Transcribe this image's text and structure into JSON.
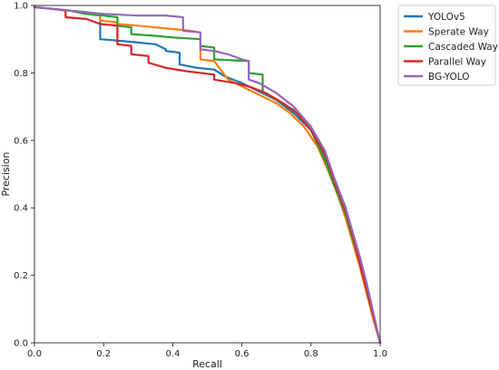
{
  "chart_data": {
    "type": "line",
    "title": "",
    "xlabel": "Recall",
    "ylabel": "Precision",
    "xlim": [
      0.0,
      1.0
    ],
    "ylim": [
      0.0,
      1.0
    ],
    "xticks": [
      "0.0",
      "0.2",
      "0.4",
      "0.6",
      "0.8",
      "1.0"
    ],
    "yticks": [
      "0.0",
      "0.2",
      "0.4",
      "0.6",
      "0.8",
      "1.0"
    ],
    "grid": false,
    "legend_position": "outside-right-top",
    "series": [
      {
        "name": "YOLOv5",
        "color": "#1f77b4",
        "x": [
          0.0,
          0.05,
          0.1,
          0.15,
          0.19,
          0.19,
          0.25,
          0.3,
          0.35,
          0.38,
          0.38,
          0.42,
          0.42,
          0.47,
          0.52,
          0.55,
          0.6,
          0.65,
          0.7,
          0.75,
          0.8,
          0.84,
          0.87,
          0.9,
          0.92,
          0.94,
          0.96,
          0.98,
          1.0
        ],
        "y": [
          0.995,
          0.99,
          0.985,
          0.975,
          0.97,
          0.9,
          0.895,
          0.89,
          0.885,
          0.87,
          0.865,
          0.86,
          0.825,
          0.815,
          0.81,
          0.79,
          0.77,
          0.745,
          0.72,
          0.68,
          0.63,
          0.55,
          0.48,
          0.4,
          0.32,
          0.25,
          0.17,
          0.08,
          0.0
        ]
      },
      {
        "name": "Sperate Way",
        "color": "#ff7f0e",
        "x": [
          0.0,
          0.05,
          0.1,
          0.15,
          0.19,
          0.19,
          0.24,
          0.24,
          0.3,
          0.35,
          0.4,
          0.45,
          0.48,
          0.48,
          0.52,
          0.56,
          0.6,
          0.65,
          0.7,
          0.74,
          0.78,
          0.82,
          0.85,
          0.88,
          0.9,
          0.92,
          0.94,
          0.96,
          0.98,
          1.0
        ],
        "y": [
          0.995,
          0.99,
          0.985,
          0.975,
          0.97,
          0.955,
          0.95,
          0.945,
          0.94,
          0.935,
          0.93,
          0.925,
          0.92,
          0.84,
          0.835,
          0.78,
          0.76,
          0.735,
          0.71,
          0.68,
          0.64,
          0.58,
          0.51,
          0.43,
          0.37,
          0.3,
          0.23,
          0.15,
          0.07,
          0.0
        ]
      },
      {
        "name": "Cascaded Way",
        "color": "#2ca02c",
        "x": [
          0.0,
          0.05,
          0.1,
          0.15,
          0.2,
          0.24,
          0.24,
          0.28,
          0.28,
          0.35,
          0.4,
          0.48,
          0.48,
          0.52,
          0.52,
          0.62,
          0.62,
          0.66,
          0.66,
          0.7,
          0.75,
          0.8,
          0.84,
          0.87,
          0.9,
          0.92,
          0.94,
          0.96,
          0.98,
          1.0
        ],
        "y": [
          0.995,
          0.99,
          0.985,
          0.975,
          0.97,
          0.965,
          0.94,
          0.935,
          0.915,
          0.91,
          0.905,
          0.9,
          0.88,
          0.875,
          0.84,
          0.835,
          0.8,
          0.795,
          0.745,
          0.72,
          0.69,
          0.63,
          0.54,
          0.46,
          0.38,
          0.31,
          0.24,
          0.16,
          0.08,
          0.0
        ]
      },
      {
        "name": "Parallel Way",
        "color": "#d62728",
        "x": [
          0.0,
          0.05,
          0.09,
          0.09,
          0.15,
          0.19,
          0.24,
          0.24,
          0.28,
          0.28,
          0.33,
          0.33,
          0.38,
          0.44,
          0.52,
          0.52,
          0.58,
          0.62,
          0.67,
          0.72,
          0.76,
          0.8,
          0.84,
          0.87,
          0.9,
          0.92,
          0.94,
          0.96,
          0.98,
          1.0
        ],
        "y": [
          0.995,
          0.99,
          0.985,
          0.965,
          0.96,
          0.945,
          0.94,
          0.885,
          0.88,
          0.855,
          0.85,
          0.83,
          0.815,
          0.805,
          0.795,
          0.78,
          0.77,
          0.76,
          0.74,
          0.71,
          0.68,
          0.63,
          0.56,
          0.47,
          0.39,
          0.32,
          0.24,
          0.16,
          0.08,
          0.0
        ]
      },
      {
        "name": "BG-YOLO",
        "color": "#9467bd",
        "x": [
          0.0,
          0.05,
          0.1,
          0.15,
          0.2,
          0.3,
          0.38,
          0.43,
          0.43,
          0.48,
          0.48,
          0.52,
          0.56,
          0.6,
          0.62,
          0.62,
          0.65,
          0.7,
          0.75,
          0.8,
          0.84,
          0.87,
          0.9,
          0.92,
          0.94,
          0.96,
          0.98,
          1.0
        ],
        "y": [
          0.995,
          0.99,
          0.985,
          0.98,
          0.975,
          0.97,
          0.97,
          0.965,
          0.925,
          0.92,
          0.87,
          0.865,
          0.855,
          0.84,
          0.835,
          0.78,
          0.77,
          0.74,
          0.7,
          0.64,
          0.57,
          0.48,
          0.4,
          0.33,
          0.26,
          0.18,
          0.09,
          0.0
        ]
      }
    ]
  }
}
